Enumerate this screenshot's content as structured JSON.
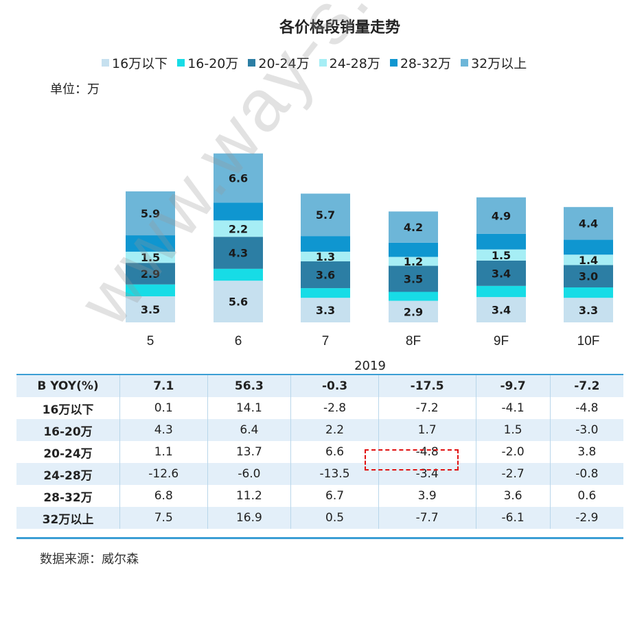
{
  "chart_data": {
    "type": "bar",
    "stacked": true,
    "title": "各价格段销量走势",
    "unit_label": "单位：万",
    "categories": [
      "5",
      "6",
      "7",
      "8F",
      "9F",
      "10F"
    ],
    "x_group_label": "2019",
    "series": [
      {
        "name": "16万以下",
        "color": "#c6e0ef",
        "values": [
          3.5,
          5.6,
          3.3,
          2.9,
          3.4,
          3.3
        ]
      },
      {
        "name": "16-20万",
        "color": "#17dce6",
        "values": [
          1.6,
          1.6,
          1.3,
          1.2,
          1.5,
          1.4
        ]
      },
      {
        "name": "20-24万",
        "color": "#2c7ea4",
        "values": [
          2.9,
          4.3,
          3.6,
          3.5,
          3.4,
          3.0
        ]
      },
      {
        "name": "24-28万",
        "color": "#a6eef5",
        "values": [
          1.5,
          2.2,
          1.3,
          1.2,
          1.5,
          1.4
        ]
      },
      {
        "name": "28-32万",
        "color": "#0f96d0",
        "values": [
          2.2,
          2.4,
          2.1,
          1.9,
          2.1,
          2.0
        ]
      },
      {
        "name": "32万以上",
        "color": "#6db6d8",
        "values": [
          5.9,
          6.6,
          5.7,
          4.2,
          4.9,
          4.4
        ]
      }
    ],
    "data_labels": {
      "16万以下": [
        "3.5",
        "5.6",
        "3.3",
        "2.9",
        "3.4",
        "3.3"
      ],
      "20-24万": [
        "2.9",
        "4.3",
        "3.6",
        "3.5",
        "3.4",
        "3.0"
      ],
      "24-28万": [
        "1.5",
        "2.2",
        "1.3",
        "1.2",
        "1.5",
        "1.4"
      ],
      "32万以上": [
        "5.9",
        "6.6",
        "5.7",
        "4.2",
        "4.9",
        "4.4"
      ]
    },
    "ylim": [
      0,
      25
    ],
    "legend_position": "top"
  },
  "table": {
    "rows": [
      {
        "label": "B YOY(%)",
        "values": [
          "7.1",
          "56.3",
          "-0.3",
          "-17.5",
          "-9.7",
          "-7.2"
        ],
        "bold": true
      },
      {
        "label": "16万以下",
        "values": [
          "0.1",
          "14.1",
          "-2.8",
          "-7.2",
          "-4.1",
          "-4.8"
        ]
      },
      {
        "label": "16-20万",
        "values": [
          "4.3",
          "6.4",
          "2.2",
          "1.7",
          "1.5",
          "-3.0"
        ]
      },
      {
        "label": "20-24万",
        "values": [
          "1.1",
          "13.7",
          "6.6",
          "-4.8",
          "-2.0",
          "3.8"
        ]
      },
      {
        "label": "24-28万",
        "values": [
          "-12.6",
          "-6.0",
          "-13.5",
          "-3.4",
          "-2.7",
          "-0.8"
        ]
      },
      {
        "label": "28-32万",
        "values": [
          "6.8",
          "11.2",
          "6.7",
          "3.9",
          "3.6",
          "0.6"
        ]
      },
      {
        "label": "32万以上",
        "values": [
          "7.5",
          "16.9",
          "0.5",
          "-7.7",
          "-6.1",
          "-2.9"
        ]
      }
    ]
  },
  "source": "数据来源：威尔森",
  "watermark": "www.way-s.cn"
}
